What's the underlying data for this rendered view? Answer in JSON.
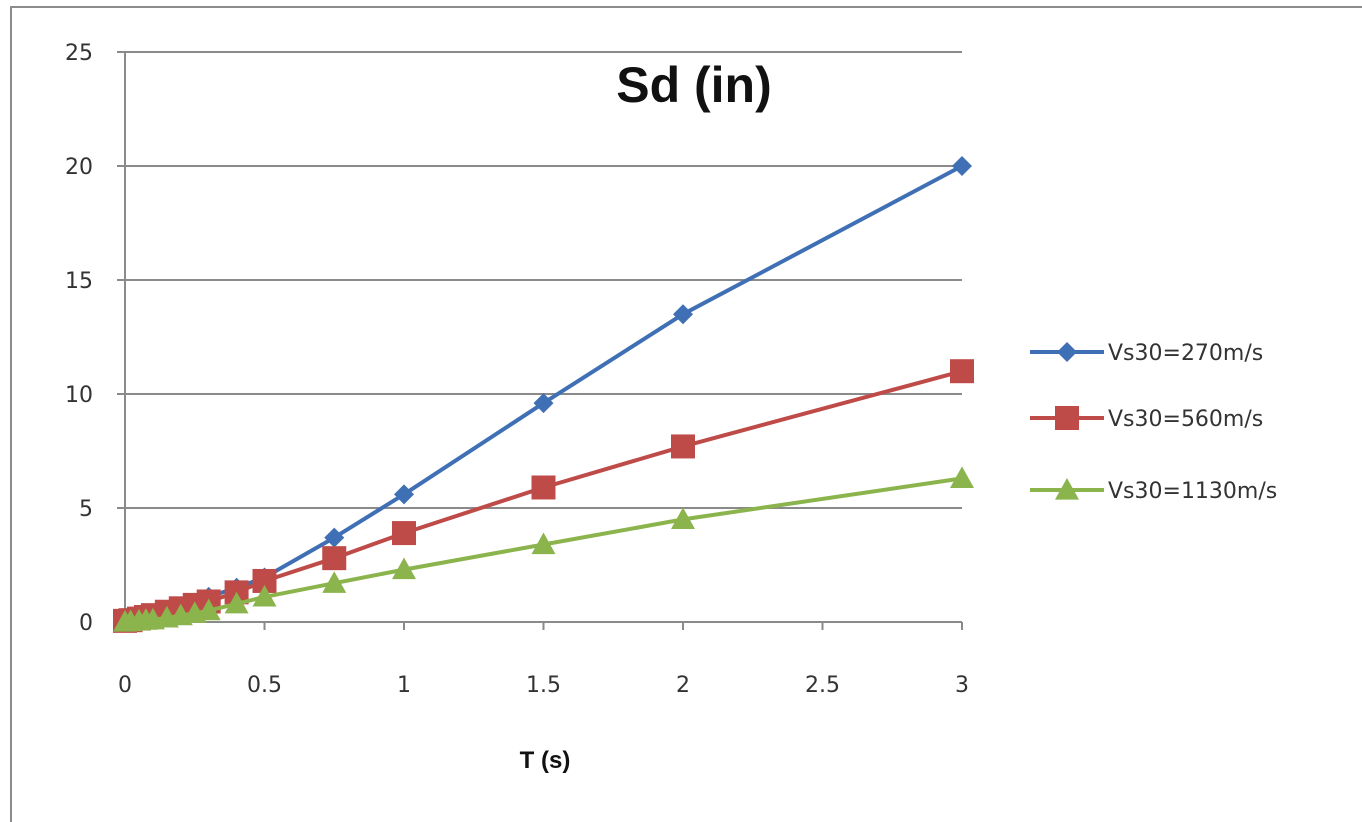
{
  "chart_data": {
    "type": "line",
    "title": "Sd (in)",
    "xlabel": "T (s)",
    "ylabel": "",
    "xlim": [
      0,
      3
    ],
    "ylim": [
      0,
      25
    ],
    "x_ticks": [
      "0",
      "0.5",
      "1",
      "1.5",
      "2",
      "2.5",
      "3"
    ],
    "y_ticks": [
      "0",
      "5",
      "10",
      "15",
      "20",
      "25"
    ],
    "grid": "horizontal",
    "legend_position": "right",
    "series": [
      {
        "name": "Vs30=270m/s",
        "color": "#3f6fb5",
        "marker": "diamond",
        "x": [
          0,
          0.02,
          0.05,
          0.075,
          0.1,
          0.15,
          0.2,
          0.25,
          0.3,
          0.4,
          0.5,
          0.75,
          1,
          1.5,
          2,
          3
        ],
        "y": [
          0,
          0.02,
          0.06,
          0.12,
          0.2,
          0.4,
          0.62,
          0.85,
          1.1,
          1.5,
          1.95,
          3.7,
          5.6,
          9.6,
          13.5,
          20
        ]
      },
      {
        "name": "Vs30=560m/s",
        "color": "#be4b48",
        "marker": "square",
        "x": [
          0,
          0.02,
          0.05,
          0.075,
          0.1,
          0.15,
          0.2,
          0.25,
          0.3,
          0.4,
          0.5,
          0.75,
          1,
          1.5,
          2,
          3
        ],
        "y": [
          0.05,
          0.08,
          0.15,
          0.22,
          0.3,
          0.45,
          0.6,
          0.75,
          0.9,
          1.3,
          1.8,
          2.8,
          3.9,
          5.9,
          7.7,
          11
        ]
      },
      {
        "name": "Vs30=1130m/s",
        "color": "#8bb44d",
        "marker": "triangle",
        "x": [
          0,
          0.02,
          0.05,
          0.075,
          0.1,
          0.15,
          0.2,
          0.25,
          0.3,
          0.4,
          0.5,
          0.75,
          1,
          1.5,
          2,
          3
        ],
        "y": [
          0,
          0.02,
          0.05,
          0.08,
          0.1,
          0.18,
          0.28,
          0.38,
          0.5,
          0.8,
          1.1,
          1.7,
          2.3,
          3.4,
          4.5,
          6.3
        ]
      }
    ]
  }
}
